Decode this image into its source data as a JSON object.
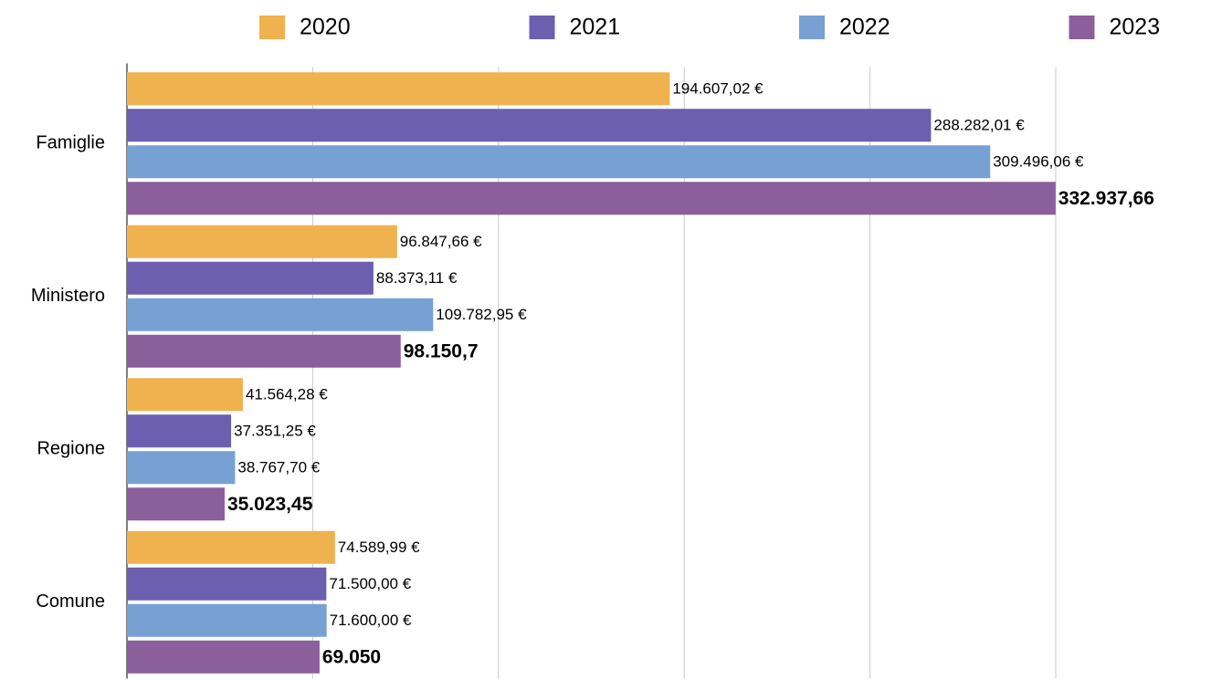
{
  "chart_data": {
    "type": "bar",
    "orientation": "horizontal",
    "categories": [
      "Famiglie",
      "Ministero",
      "Regione",
      "Comune"
    ],
    "series": [
      {
        "name": "2020",
        "color": "#f0b24e",
        "values": [
          194607.02,
          96847.66,
          41564.28,
          74589.99
        ],
        "value_labels": [
          "194.607,02 €",
          "96.847,66 €",
          "41.564,28 €",
          "74.589,99 €"
        ]
      },
      {
        "name": "2021",
        "color": "#6c5fb0",
        "values": [
          288282.01,
          88373.11,
          37351.25,
          71500
        ],
        "value_labels": [
          "288.282,01 €",
          "88.373,11 €",
          "37.351,25 €",
          "71.500,00 €"
        ]
      },
      {
        "name": "2022",
        "color": "#77a1d3",
        "values": [
          309496.06,
          109782.95,
          38767.7,
          71600
        ],
        "value_labels": [
          "309.496,06 €",
          "109.782,95 €",
          "38.767,70 €",
          "71.600,00 €"
        ]
      },
      {
        "name": "2023",
        "color": "#8b5e9c",
        "values": [
          332937.66,
          98150.7,
          35023.45,
          69050
        ],
        "value_labels": [
          "332.937,66",
          "98.150,7",
          "35.023,45",
          "69.050"
        ]
      }
    ],
    "xlim": [
      0,
      333000
    ],
    "xticks": [
      0,
      66600,
      133200,
      199800,
      266400,
      333000
    ],
    "grid": true,
    "legend": "top"
  }
}
